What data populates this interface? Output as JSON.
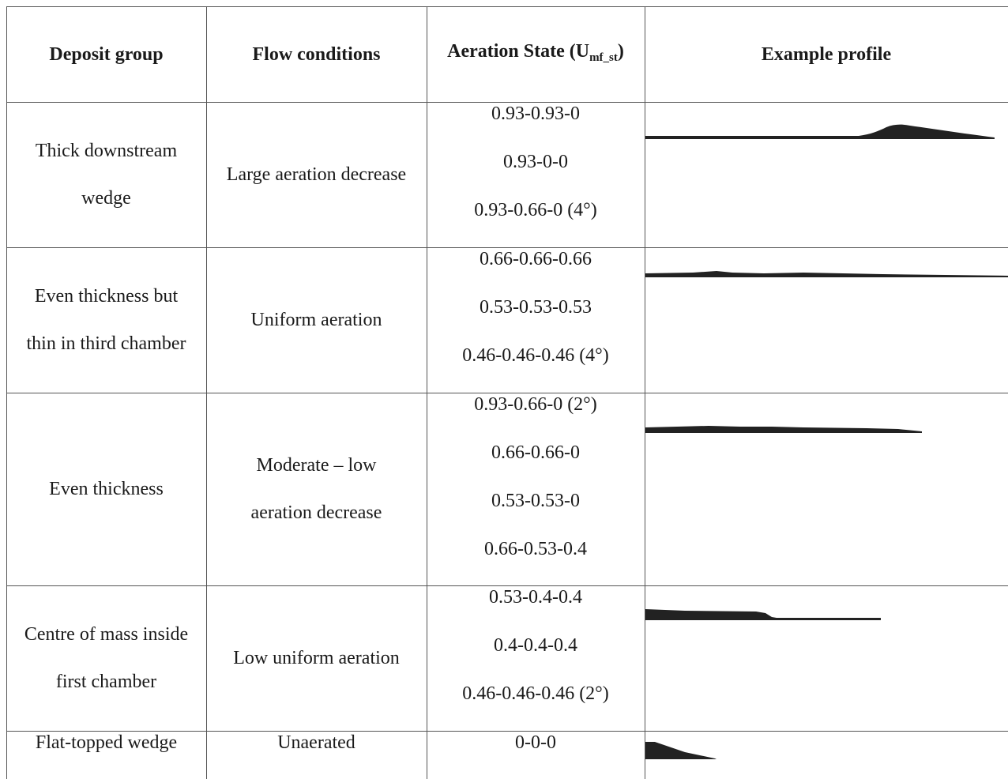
{
  "headers": {
    "group": "Deposit group",
    "flow": "Flow conditions",
    "state_main": "Aeration State (U",
    "state_sub": "mf_st",
    "state_close": ")",
    "profile": "Example profile"
  },
  "rows": [
    {
      "group": [
        "Thick downstream",
        "wedge"
      ],
      "flow": [
        "Large aeration decrease"
      ],
      "states": [
        "0.93-0.93-0",
        "0.93-0-0",
        "0.93-0.66-0 (4°)"
      ]
    },
    {
      "group": [
        "Even thickness but",
        "thin in third chamber"
      ],
      "flow": [
        "Uniform aeration"
      ],
      "states": [
        "0.66-0.66-0.66",
        "0.53-0.53-0.53",
        "0.46-0.46-0.46 (4°)"
      ]
    },
    {
      "group": [
        "Even thickness"
      ],
      "flow": [
        "Moderate – low",
        "aeration decrease"
      ],
      "states": [
        "0.93-0.66-0 (2°)",
        "0.66-0.66-0",
        "0.53-0.53-0",
        "0.66-0.53-0.4"
      ]
    },
    {
      "group": [
        "Centre of mass inside",
        "first chamber"
      ],
      "flow": [
        "Low uniform aeration"
      ],
      "states": [
        "0.53-0.4-0.4",
        "0.4-0.4-0.4",
        "0.46-0.46-0.46 (2°)"
      ]
    },
    {
      "group": [
        "Flat-topped wedge"
      ],
      "flow": [
        "Unaerated"
      ],
      "states": [
        "0-0-0"
      ]
    }
  ]
}
